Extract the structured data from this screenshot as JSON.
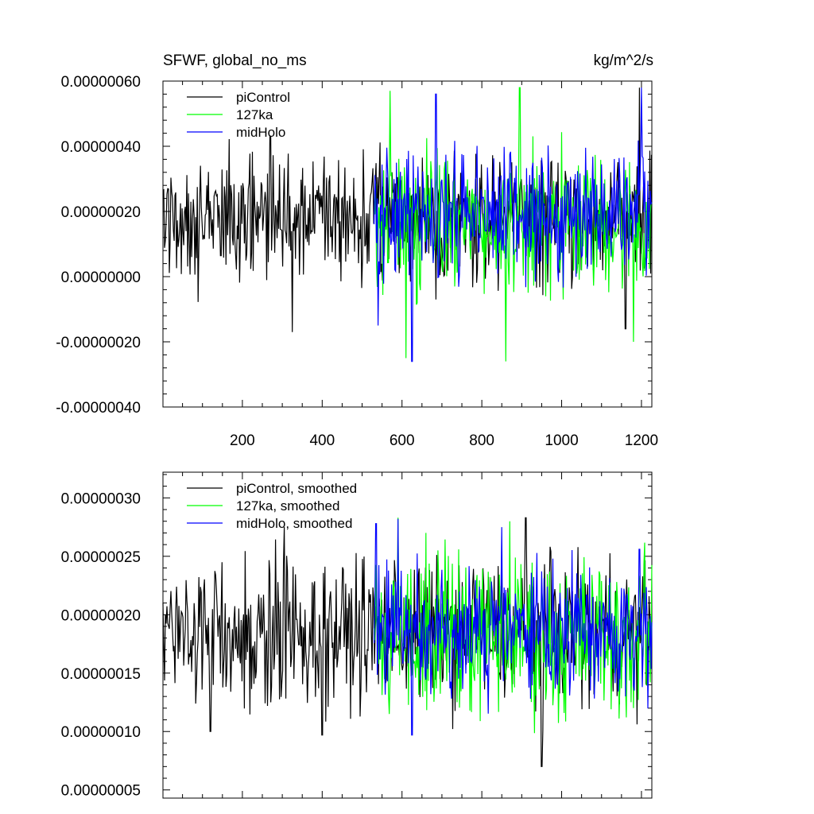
{
  "chart_data": [
    {
      "type": "line",
      "title_left": "SFWF, global_no_ms",
      "title_right": "kg/m^2/s",
      "xlabel": "",
      "ylabel": "",
      "xlim": [
        1,
        1226
      ],
      "ylim": [
        -4e-07,
        6e-07
      ],
      "x_ticks": [
        200,
        400,
        600,
        800,
        1000,
        1200
      ],
      "y_ticks": [
        -4e-07,
        -2e-07,
        0.0,
        2e-07,
        4e-07,
        6e-07
      ],
      "x_tick_labels": [
        "200",
        "400",
        "600",
        "800",
        "1000",
        "1200"
      ],
      "y_tick_labels": [
        "-0.00000040",
        "-0.00000020",
        "0.00000000",
        "0.00000020",
        "0.00000040",
        "0.00000060"
      ],
      "legend_position": "top-left",
      "grid": false,
      "series": [
        {
          "name": "piControl",
          "color": "#000000",
          "x_start": 1,
          "x_end": 1226,
          "mean": 1.8e-07,
          "spread": 9e-08,
          "spikes": [
            [
              270,
              4.3e-07
            ],
            [
              325,
              -1.7e-07
            ],
            [
              1160,
              -1.6e-07
            ],
            [
              1195,
              5.8e-07
            ]
          ]
        },
        {
          "name": "127ka",
          "color": "#00ff00",
          "x_start": 530,
          "x_end": 1226,
          "mean": 1.6e-07,
          "spread": 1e-07,
          "spikes": [
            [
              570,
              5.7e-07
            ],
            [
              610,
              -2.5e-07
            ],
            [
              860,
              -2.6e-07
            ],
            [
              895,
              5.8e-07
            ],
            [
              1180,
              -2e-07
            ]
          ]
        },
        {
          "name": "midHolo",
          "color": "#0000ff",
          "x_start": 530,
          "x_end": 1226,
          "mean": 1.9e-07,
          "spread": 9e-08,
          "spikes": [
            [
              540,
              -1.5e-07
            ],
            [
              625,
              -2.6e-07
            ],
            [
              685,
              5.6e-07
            ],
            [
              1200,
              5.8e-07
            ]
          ]
        }
      ]
    },
    {
      "type": "line",
      "title_left": "",
      "title_right": "",
      "xlabel": "",
      "ylabel": "",
      "xlim": [
        1,
        1226
      ],
      "ylim": [
        4.3e-08,
        3.22e-07
      ],
      "x_ticks": [
        200,
        400,
        600,
        800,
        1000,
        1200
      ],
      "y_ticks": [
        5e-08,
        1e-07,
        1.5e-07,
        2e-07,
        2.5e-07,
        3e-07
      ],
      "x_tick_labels": [],
      "y_tick_labels": [
        "0.00000005",
        "0.00000010",
        "0.00000015",
        "0.00000020",
        "0.00000025",
        "0.00000030"
      ],
      "legend_position": "top-left",
      "grid": false,
      "series": [
        {
          "name": "piControl, smoothed",
          "color": "#000000",
          "x_start": 1,
          "x_end": 1226,
          "mean": 1.85e-07,
          "spread": 2.8e-08,
          "spikes": [
            [
              120,
              1e-07
            ],
            [
              305,
              2.75e-07
            ],
            [
              400,
              9.7e-08
            ],
            [
              910,
              2.83e-07
            ],
            [
              950,
              7e-08
            ]
          ]
        },
        {
          "name": "127ka, smoothed",
          "color": "#00ff00",
          "x_start": 530,
          "x_end": 1226,
          "mean": 1.8e-07,
          "spread": 3.2e-08,
          "spikes": [
            [
              590,
              2.83e-07
            ],
            [
              660,
              2.7e-07
            ],
            [
              870,
              2.8e-07
            ],
            [
              1180,
              1.2e-07
            ]
          ]
        },
        {
          "name": "midHolo, smoothed",
          "color": "#0000ff",
          "x_start": 530,
          "x_end": 1226,
          "mean": 1.85e-07,
          "spread": 2.5e-08,
          "spikes": [
            [
              535,
              2.78e-07
            ],
            [
              590,
              2.82e-07
            ],
            [
              625,
              9.7e-08
            ],
            [
              850,
              2.75e-07
            ],
            [
              1195,
              2.56e-07
            ]
          ]
        }
      ]
    }
  ]
}
